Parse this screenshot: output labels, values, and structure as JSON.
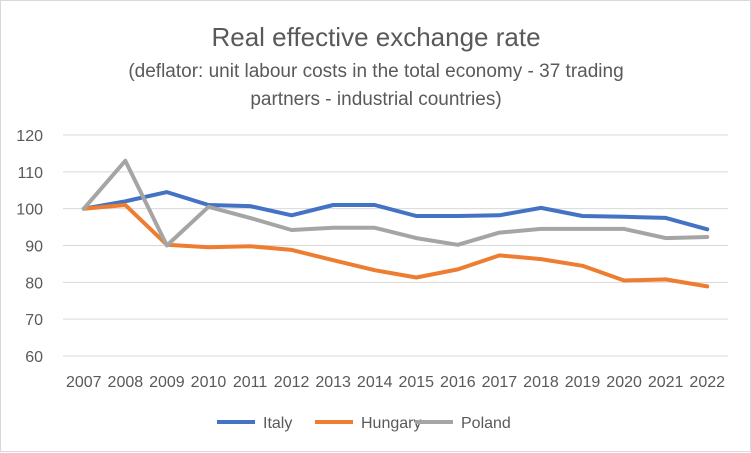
{
  "chart_data": {
    "type": "line",
    "title": "Real effective exchange rate",
    "subtitle_lines": [
      "(deflator: unit labour costs in the total economy - 37 trading",
      "partners - industrial countries)"
    ],
    "x": [
      "2007",
      "2008",
      "2009",
      "2010",
      "2011",
      "2012",
      "2013",
      "2014",
      "2015",
      "2016",
      "2017",
      "2018",
      "2019",
      "2020",
      "2021",
      "2022"
    ],
    "ylim": [
      60,
      120
    ],
    "yticks": [
      60,
      70,
      80,
      90,
      100,
      110,
      120
    ],
    "grid": true,
    "legend_position": "bottom",
    "series": [
      {
        "name": "Italy",
        "color": "#4472C4",
        "values": [
          100,
          102,
          104.5,
          101,
          100.7,
          98.2,
          101,
          101,
          98,
          98,
          98.2,
          100.2,
          98,
          97.8,
          97.5,
          94.4
        ]
      },
      {
        "name": "Hungary",
        "color": "#ED7D31",
        "values": [
          100,
          101,
          90.2,
          89.5,
          89.8,
          88.8,
          86,
          83.3,
          81.3,
          83.5,
          87.3,
          86.3,
          84.5,
          80.5,
          80.8,
          78.9
        ]
      },
      {
        "name": "Poland",
        "color": "#A5A5A5",
        "values": [
          100,
          113,
          90,
          100.5,
          97.5,
          94.2,
          94.8,
          94.8,
          92,
          90.2,
          93.5,
          94.5,
          94.5,
          94.5,
          92,
          92.3
        ]
      }
    ]
  }
}
